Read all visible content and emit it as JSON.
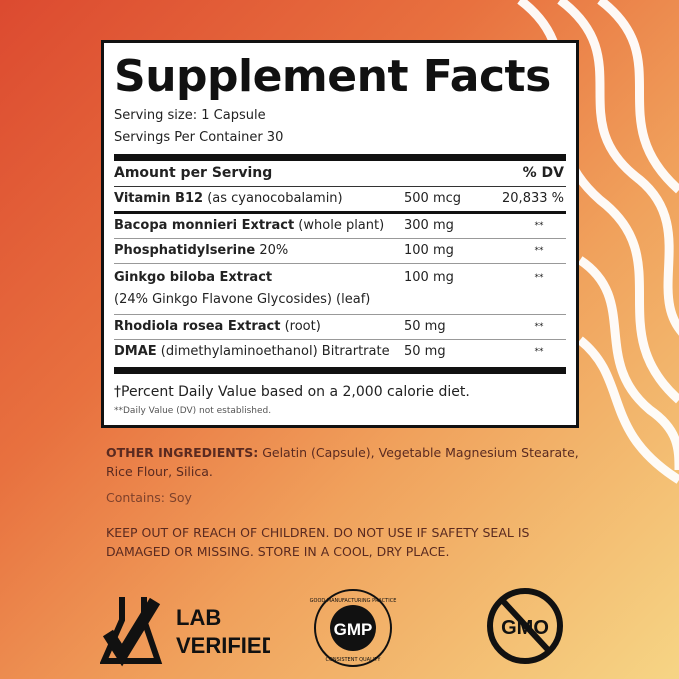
{
  "panel": {
    "title": "Supplement Facts",
    "serving_size": "Serving size: 1 Capsule",
    "servings_per_container": "Servings Per Container 30",
    "header": {
      "amount": "Amount per Serving",
      "dv": "% DV"
    },
    "rows": [
      {
        "name": "Vitamin B12",
        "detail": " (as  cyanocobalamin)",
        "amount": "500 mcg",
        "dv": "20,833 %"
      },
      {
        "name": "Bacopa monnieri Extract",
        "detail": " (whole plant)",
        "amount": "300 mg",
        "dv": "**"
      },
      {
        "name": "Phosphatidylserine",
        "detail": " 20%",
        "amount": "100 mg",
        "dv": "**"
      },
      {
        "name": "Ginkgo biloba Extract",
        "detail": "(24% Ginkgo Flavone Glycosides) (leaf)",
        "amount": "100 mg",
        "dv": "**"
      },
      {
        "name": "Rhodiola rosea Extract",
        "detail": " (root)",
        "amount": "50 mg",
        "dv": "**"
      },
      {
        "name": "DMAE",
        "detail": " (dimethylaminoethanol) Bitrartrate",
        "amount": "50 mg",
        "dv": "**"
      }
    ],
    "footnote": "†Percent Daily Value based on a 2,000 calorie diet.",
    "footnote2": "**Daily Value (DV) not established."
  },
  "other": {
    "label": "OTHER INGREDIENTS:",
    "text": " Gelatin (Capsule), Vegetable Magnesium Stearate, Rice Flour, Silica.",
    "contains": "Contains: Soy",
    "warning": "KEEP OUT OF REACH OF CHILDREN. DO NOT USE IF SAFETY SEAL IS DAMAGED OR MISSING. STORE IN A COOL, DRY PLACE."
  },
  "badges": {
    "lab1": "LAB",
    "lab2": "VERIFIED",
    "gmp": "GMP",
    "gmp_top": "GOOD MANUFACTURING PRACTICE",
    "gmp_bottom": "CONSISTENT QUALITY",
    "gmo": "GMO"
  },
  "colors": {
    "bg_top": "#dc4a30",
    "bg_bottom": "#f6d585",
    "text_brown": "#5a2a20"
  }
}
